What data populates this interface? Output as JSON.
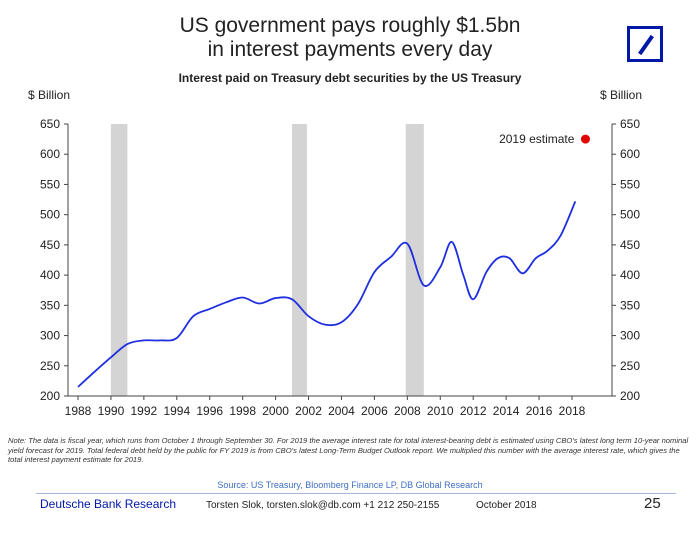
{
  "header": {
    "title_line1": "US government pays roughly $1.5bn",
    "title_line2": "in interest payments every day"
  },
  "logo": {
    "icon": "deutsche-bank-logo-icon",
    "color": "#0018a8"
  },
  "chart_data": {
    "type": "line",
    "title": "Interest paid on Treasury debt securities by the US Treasury",
    "ylabel_left": "$ Billion",
    "ylabel_right": "$ Billion",
    "xlim": [
      1988,
      2019
    ],
    "ylim": [
      200,
      650
    ],
    "x_ticks": [
      "1988",
      "1990",
      "1992",
      "1994",
      "1996",
      "1998",
      "2000",
      "2002",
      "2004",
      "2006",
      "2008",
      "2010",
      "2012",
      "2014",
      "2016",
      "2018"
    ],
    "y_ticks": [
      "200",
      "250",
      "300",
      "350",
      "400",
      "450",
      "500",
      "550",
      "600",
      "650"
    ],
    "grid": false,
    "recession_shading": [
      [
        1990.0,
        1991.0
      ],
      [
        2001.0,
        2001.9
      ],
      [
        2007.9,
        2009.0
      ]
    ],
    "series": [
      {
        "color": "#1f2fe0",
        "points": [
          [
            1988.0,
            215
          ],
          [
            1989.0,
            240
          ],
          [
            1990.0,
            264
          ],
          [
            1991.0,
            286
          ],
          [
            1992.0,
            292
          ],
          [
            1993.0,
            292
          ],
          [
            1994.0,
            296
          ],
          [
            1995.0,
            332
          ],
          [
            1996.0,
            344
          ],
          [
            1997.0,
            355
          ],
          [
            1998.0,
            363
          ],
          [
            1999.0,
            353
          ],
          [
            2000.0,
            362
          ],
          [
            2001.0,
            360
          ],
          [
            2002.0,
            332
          ],
          [
            2003.0,
            318
          ],
          [
            2004.0,
            322
          ],
          [
            2005.0,
            352
          ],
          [
            2006.0,
            405
          ],
          [
            2007.0,
            430
          ],
          [
            2008.0,
            452
          ],
          [
            2009.0,
            383
          ],
          [
            2010.0,
            413
          ],
          [
            2010.7,
            455
          ],
          [
            2011.4,
            400
          ],
          [
            2012.0,
            360
          ],
          [
            2012.8,
            405
          ],
          [
            2013.5,
            428
          ],
          [
            2014.2,
            428
          ],
          [
            2015.0,
            403
          ],
          [
            2015.8,
            428
          ],
          [
            2016.5,
            440
          ],
          [
            2017.3,
            465
          ],
          [
            2018.2,
            522
          ]
        ]
      }
    ],
    "estimate": {
      "label": "2019 estimate",
      "x": 2019,
      "y": 625,
      "color": "#e00000"
    }
  },
  "note": "Note: The data is fiscal year, which runs from October 1 through September 30. For 2019 the average interest rate for total interest-bearing debt is estimated using CBO's latest long term 10-year nominal yield forecast for 2019. Total federal debt held by the public for FY 2019 is from CBO's latest Long-Term Budget Outlook report. We multiplied this number with the average interest rate, which gives the total interest payment estimate for 2019.",
  "source": "Source: US Treasury, Bloomberg Finance LP, DB Global Research",
  "footer": {
    "brand": "Deutsche Bank Research",
    "author": "Torsten Slok, torsten.slok@db.com +1 212 250-2155",
    "date": "October 2018",
    "page_number": "25"
  }
}
